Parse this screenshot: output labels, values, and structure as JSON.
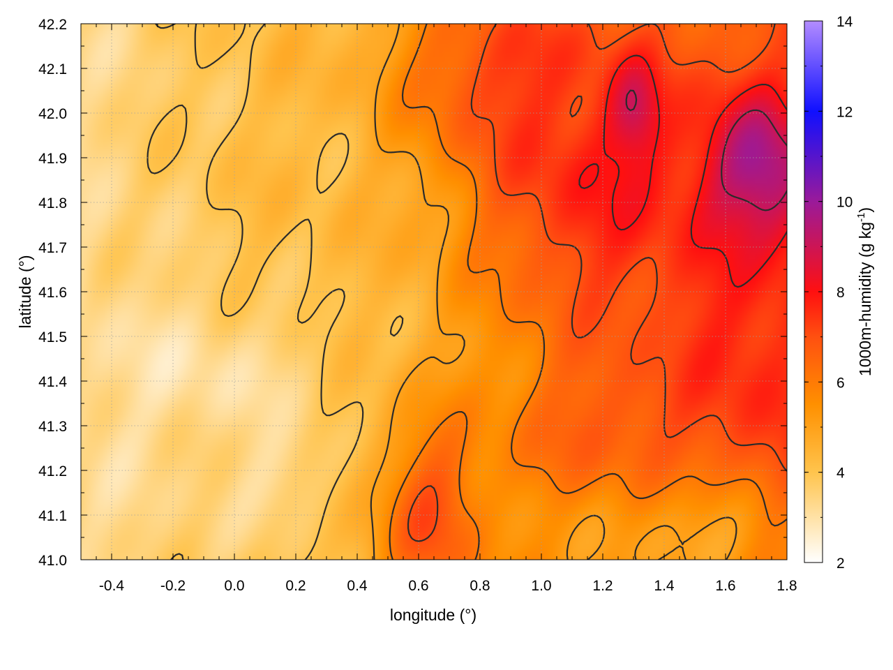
{
  "chart_data": {
    "type": "heatmap",
    "title": "",
    "xlabel": "longitude (°)",
    "ylabel": "latitude (°)",
    "xlim": [
      -0.5,
      1.8
    ],
    "ylim": [
      41.0,
      42.2
    ],
    "xticks": [
      "-0.4",
      "-0.2",
      "0.0",
      "0.2",
      "0.4",
      "0.6",
      "0.8",
      "1.0",
      "1.2",
      "1.4",
      "1.6",
      "1.8"
    ],
    "xtick_values": [
      -0.4,
      -0.2,
      0.0,
      0.2,
      0.4,
      0.6,
      0.8,
      1.0,
      1.2,
      1.4,
      1.6,
      1.8
    ],
    "yticks": [
      "41.0",
      "41.1",
      "41.2",
      "41.3",
      "41.4",
      "41.5",
      "41.6",
      "41.7",
      "41.8",
      "41.9",
      "42.0",
      "42.1",
      "42.2"
    ],
    "ytick_values": [
      41.0,
      41.1,
      41.2,
      41.3,
      41.4,
      41.5,
      41.6,
      41.7,
      41.8,
      41.9,
      42.0,
      42.1,
      42.2
    ],
    "grid": true,
    "colorbar": {
      "label": "1000m-humidity (g kg",
      "label_sup": "-1",
      "label_end": ")",
      "range": [
        2,
        14
      ],
      "ticks": [
        "2",
        "4",
        "6",
        "8",
        "10",
        "12",
        "14"
      ],
      "tick_values": [
        2,
        4,
        6,
        8,
        10,
        12,
        14
      ],
      "stops": [
        {
          "value": 2,
          "color": "#ffffff"
        },
        {
          "value": 4,
          "color": "#ffc44d"
        },
        {
          "value": 5.5,
          "color": "#ff9000"
        },
        {
          "value": 7,
          "color": "#ff5010"
        },
        {
          "value": 8,
          "color": "#ff1010"
        },
        {
          "value": 10,
          "color": "#9a1a9a"
        },
        {
          "value": 12,
          "color": "#1010ff"
        },
        {
          "value": 14,
          "color": "#b38cff"
        }
      ]
    },
    "field_features": [
      {
        "lon": -0.5,
        "lat": 41.6,
        "value": 3.2,
        "spread_lon": 0.35,
        "spread_lat": 0.6
      },
      {
        "lon": 0.0,
        "lat": 41.45,
        "value": 2.4,
        "spread_lon": 0.25,
        "spread_lat": 0.12
      },
      {
        "lon": 0.15,
        "lat": 41.2,
        "value": 2.8,
        "spread_lon": 0.12,
        "spread_lat": 0.1
      },
      {
        "lon": 0.3,
        "lat": 41.9,
        "value": 4.2,
        "spread_lon": 0.4,
        "spread_lat": 0.4
      },
      {
        "lon": 0.9,
        "lat": 42.1,
        "value": 7.2,
        "spread_lon": 0.25,
        "spread_lat": 0.15
      },
      {
        "lon": 1.2,
        "lat": 41.85,
        "value": 7.8,
        "spread_lon": 0.3,
        "spread_lat": 0.25
      },
      {
        "lon": 1.3,
        "lat": 42.0,
        "value": 9.0,
        "spread_lon": 0.06,
        "spread_lat": 0.08
      },
      {
        "lon": 1.7,
        "lat": 41.85,
        "value": 11.0,
        "spread_lon": 0.12,
        "spread_lat": 0.12
      },
      {
        "lon": 1.65,
        "lat": 41.45,
        "value": 7.8,
        "spread_lon": 0.2,
        "spread_lat": 0.3
      },
      {
        "lon": 0.65,
        "lat": 41.1,
        "value": 7.0,
        "spread_lon": 0.12,
        "spread_lat": 0.15
      },
      {
        "lon": 1.3,
        "lat": 41.3,
        "value": 7.0,
        "spread_lon": 0.25,
        "spread_lat": 0.12
      },
      {
        "lon": 1.5,
        "lat": 41.05,
        "value": 4.8,
        "spread_lon": 0.3,
        "spread_lat": 0.1
      }
    ],
    "contour_levels": [
      4,
      5,
      6,
      7,
      8,
      9,
      10
    ]
  }
}
